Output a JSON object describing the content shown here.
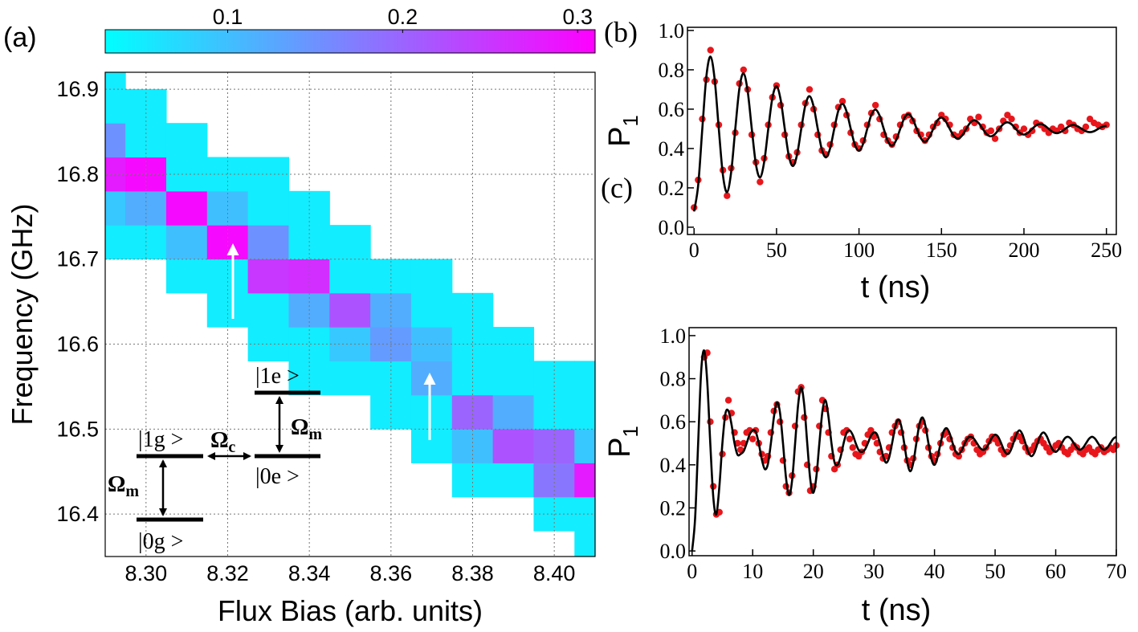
{
  "chart_data": [
    {
      "type": "heatmap",
      "panel_label": "(a)",
      "xlabel": "Flux Bias (arb. units)",
      "ylabel": "Frequency (GHz)",
      "colormap": "cool",
      "grid": true,
      "xlim": [
        8.29,
        8.41
      ],
      "ylim": [
        16.35,
        16.92
      ],
      "zlim": [
        0.03,
        0.31
      ],
      "xticks": [
        {
          "value": 8.3,
          "label": "8.30"
        },
        8.32,
        8.34,
        8.36,
        8.38,
        {
          "value": 8.4,
          "label": "8.40"
        }
      ],
      "yticks": [
        16.4,
        16.5,
        16.6,
        16.7,
        16.8,
        16.9
      ],
      "zticks": [
        0.1,
        0.2,
        0.3
      ],
      "x": [
        8.29,
        8.3,
        8.31,
        8.32,
        8.33,
        8.34,
        8.35,
        8.36,
        8.37,
        8.38,
        8.39,
        8.4,
        8.41
      ],
      "y": [
        16.36,
        16.4,
        16.44,
        16.48,
        16.52,
        16.56,
        16.6,
        16.64,
        16.68,
        16.72,
        16.76,
        16.8,
        16.84,
        16.88,
        16.92
      ],
      "z": [
        [
          null,
          null,
          null,
          null,
          null,
          null,
          null,
          null,
          null,
          null,
          null,
          null,
          0.05
        ],
        [
          null,
          null,
          null,
          null,
          null,
          null,
          null,
          null,
          null,
          null,
          null,
          0.05,
          0.05
        ],
        [
          null,
          null,
          null,
          null,
          null,
          null,
          null,
          null,
          null,
          0.05,
          0.05,
          0.18,
          0.28
        ],
        [
          null,
          null,
          null,
          null,
          null,
          null,
          null,
          null,
          0.05,
          0.1,
          0.22,
          0.2,
          0.09
        ],
        [
          null,
          null,
          null,
          null,
          null,
          null,
          null,
          0.05,
          0.05,
          0.2,
          0.12,
          0.05,
          0.05
        ],
        [
          null,
          null,
          null,
          null,
          null,
          0.05,
          0.05,
          0.05,
          0.12,
          0.05,
          0.05,
          0.05,
          0.05
        ],
        [
          null,
          null,
          null,
          null,
          0.05,
          0.05,
          0.09,
          0.14,
          0.1,
          0.05,
          0.05,
          null,
          null
        ],
        [
          null,
          null,
          null,
          0.05,
          0.05,
          0.12,
          0.22,
          0.12,
          0.05,
          0.05,
          null,
          null,
          null
        ],
        [
          null,
          null,
          0.05,
          0.05,
          0.25,
          0.26,
          0.05,
          0.05,
          0.05,
          null,
          null,
          null,
          null
        ],
        [
          0.05,
          0.05,
          0.1,
          0.3,
          0.15,
          0.05,
          0.05,
          null,
          null,
          null,
          null,
          null,
          null
        ],
        [
          0.09,
          0.12,
          0.3,
          0.1,
          0.05,
          0.05,
          null,
          null,
          null,
          null,
          null,
          null,
          null
        ],
        [
          0.28,
          0.3,
          0.05,
          0.05,
          0.05,
          null,
          null,
          null,
          null,
          null,
          null,
          null,
          null
        ],
        [
          0.15,
          0.05,
          0.05,
          null,
          null,
          null,
          null,
          null,
          null,
          null,
          null,
          null,
          null
        ],
        [
          0.05,
          0.05,
          null,
          null,
          null,
          null,
          null,
          null,
          null,
          null,
          null,
          null,
          null
        ],
        [
          0.05,
          null,
          null,
          null,
          null,
          null,
          null,
          null,
          null,
          null,
          null,
          null,
          null
        ]
      ],
      "annotations": [
        {
          "text": "|1g >"
        },
        {
          "text": "|0g >"
        },
        {
          "text": "|1e >"
        },
        {
          "text": "|0e >"
        },
        {
          "text": "Ω",
          "sub": "m"
        },
        {
          "text": "Ω",
          "sub": "c"
        },
        {
          "text": "Ω",
          "sub": "m"
        }
      ]
    },
    {
      "type": "line",
      "panel_label": "(b)",
      "xlabel": "t (ns)",
      "ylabel": "P",
      "ylabel_subscript": "1",
      "xlim": [
        -4,
        256
      ],
      "ylim": [
        -0.037,
        1.016
      ],
      "xticks": [
        0,
        50,
        100,
        150,
        200,
        250
      ],
      "yticks": [
        {
          "value": 0,
          "label": "0.0"
        },
        {
          "value": 0.2,
          "label": "0.2"
        },
        {
          "value": 0.4,
          "label": "0.4"
        },
        {
          "value": 0.6,
          "label": "0.6"
        },
        {
          "value": 0.8,
          "label": "0.8"
        },
        {
          "value": 1,
          "label": "1.0"
        }
      ],
      "x": [
        0,
        2.5,
        5,
        7.5,
        10,
        12.5,
        15,
        17.5,
        20,
        22.5,
        25,
        27.5,
        30,
        32.5,
        35,
        37.5,
        40,
        42.5,
        45,
        47.5,
        50,
        52.5,
        55,
        57.5,
        60,
        62.5,
        65,
        67.5,
        70,
        72.5,
        75,
        77.5,
        80,
        82.5,
        85,
        87.5,
        90,
        92.5,
        95,
        97.5,
        100,
        102.5,
        105,
        107.5,
        110,
        112.5,
        115,
        117.5,
        120,
        122.5,
        125,
        127.5,
        130,
        132.5,
        135,
        137.5,
        140,
        142.5,
        145,
        147.5,
        150,
        152.5,
        155,
        157.5,
        160,
        162.5,
        165,
        167.5,
        170,
        172.5,
        175,
        177.5,
        180,
        182.5,
        185,
        187.5,
        190,
        192.5,
        195,
        197.5,
        200,
        202.5,
        205,
        207.5,
        210,
        212.5,
        215,
        217.5,
        220,
        222.5,
        225,
        227.5,
        230,
        232.5,
        235,
        237.5,
        240,
        242.5,
        245,
        247.5,
        250
      ],
      "series": [
        {
          "mode": "markers",
          "color": "#e8161b",
          "values": [
            0.1,
            0.24,
            0.55,
            0.75,
            0.9,
            0.74,
            0.52,
            0.29,
            0.16,
            0.3,
            0.48,
            0.73,
            0.8,
            0.7,
            0.47,
            0.33,
            0.23,
            0.35,
            0.52,
            0.66,
            0.72,
            0.62,
            0.47,
            0.36,
            0.33,
            0.38,
            0.52,
            0.63,
            0.7,
            0.6,
            0.47,
            0.39,
            0.37,
            0.42,
            0.52,
            0.61,
            0.64,
            0.57,
            0.48,
            0.42,
            0.4,
            0.44,
            0.52,
            0.58,
            0.62,
            0.55,
            0.47,
            0.44,
            0.42,
            0.46,
            0.52,
            0.56,
            0.57,
            0.54,
            0.49,
            0.47,
            0.44,
            0.47,
            0.51,
            0.53,
            0.57,
            0.55,
            0.52,
            0.47,
            0.46,
            0.48,
            0.5,
            0.55,
            0.53,
            0.56,
            0.51,
            0.48,
            0.49,
            0.45,
            0.5,
            0.54,
            0.57,
            0.55,
            0.51,
            0.48,
            0.5,
            0.47,
            0.49,
            0.53,
            0.52,
            0.5,
            0.48,
            0.5,
            0.49,
            0.51,
            0.49,
            0.53,
            0.52,
            0.5,
            0.49,
            0.51,
            0.55,
            0.53,
            0.52,
            0.51,
            0.52
          ]
        },
        {
          "mode": "line",
          "color": "#000000",
          "values": [
            0.08,
            0.213,
            0.5,
            0.769,
            0.867,
            0.751,
            0.5,
            0.265,
            0.178,
            0.28,
            0.5,
            0.706,
            0.782,
            0.692,
            0.5,
            0.32,
            0.253,
            0.331,
            0.5,
            0.658,
            0.716,
            0.648,
            0.5,
            0.361,
            0.311,
            0.371,
            0.5,
            0.621,
            0.666,
            0.613,
            0.5,
            0.394,
            0.355,
            0.401,
            0.5,
            0.593,
            0.627,
            0.587,
            0.5,
            0.419,
            0.389,
            0.424,
            0.5,
            0.571,
            0.598,
            0.567,
            0.5,
            0.437,
            0.414,
            0.442,
            0.5,
            0.555,
            0.575,
            0.551,
            0.5,
            0.452,
            0.434,
            0.455,
            0.5,
            0.542,
            0.557,
            0.539,
            0.5,
            0.464,
            0.45,
            0.466,
            0.5,
            0.532,
            0.544,
            0.53,
            0.5,
            0.472,
            0.462,
            0.474,
            0.5,
            0.524,
            0.533,
            0.523,
            0.5,
            0.479,
            0.471,
            0.48,
            0.5,
            0.518,
            0.525,
            0.517,
            0.5,
            0.484,
            0.478,
            0.485,
            0.5,
            0.514,
            0.52,
            0.513,
            0.5,
            0.488,
            0.483,
            0.488,
            0.5,
            0.511,
            0.515
          ]
        }
      ]
    },
    {
      "type": "line",
      "panel_label": "(c)",
      "xlabel": "t (ns)",
      "ylabel": "P",
      "ylabel_subscript": "1",
      "xlim": [
        -0.5,
        70
      ],
      "ylim": [
        -0.022,
        1.037
      ],
      "xticks": [
        0,
        10,
        20,
        30,
        40,
        50,
        60,
        70
      ],
      "yticks": [
        {
          "value": 0,
          "label": "0.0"
        },
        {
          "value": 0.2,
          "label": "0.2"
        },
        {
          "value": 0.4,
          "label": "0.4"
        },
        {
          "value": 0.6,
          "label": "0.6"
        },
        {
          "value": 0.8,
          "label": "0.8"
        },
        {
          "value": 1,
          "label": "1.0"
        }
      ],
      "x": [
        0,
        0.5,
        1,
        1.5,
        2,
        2.5,
        3,
        3.5,
        4,
        4.5,
        5,
        5.5,
        6,
        6.5,
        7,
        7.5,
        8,
        8.5,
        9,
        9.5,
        10,
        10.5,
        11,
        11.5,
        12,
        12.5,
        13,
        13.5,
        14,
        14.5,
        15,
        15.5,
        16,
        16.5,
        17,
        17.5,
        18,
        18.5,
        19,
        19.5,
        20,
        20.5,
        21,
        21.5,
        22,
        22.5,
        23,
        23.5,
        24,
        24.5,
        25,
        25.5,
        26,
        26.5,
        27,
        27.5,
        28,
        28.5,
        29,
        29.5,
        30,
        30.5,
        31,
        31.5,
        32,
        32.5,
        33,
        33.5,
        34,
        34.5,
        35,
        35.5,
        36,
        36.5,
        37,
        37.5,
        38,
        38.5,
        39,
        39.5,
        40,
        40.5,
        41,
        41.5,
        42,
        42.5,
        43,
        43.5,
        44,
        44.5,
        45,
        45.5,
        46,
        46.5,
        47,
        47.5,
        48,
        48.5,
        49,
        49.5,
        50,
        50.5,
        51,
        51.5,
        52,
        52.5,
        53,
        53.5,
        54,
        54.5,
        55,
        55.5,
        56,
        56.5,
        57,
        57.5,
        58,
        58.5,
        59,
        59.5,
        60,
        60.5,
        61,
        61.5,
        62,
        62.5,
        63,
        63.5,
        64,
        64.5,
        65,
        65.5,
        66,
        66.5,
        67,
        67.5,
        68,
        68.5,
        69,
        69.5,
        70
      ],
      "series": [
        {
          "mode": "markers",
          "color": "#e8161b",
          "values": [
            null,
            null,
            null,
            null,
            0.9,
            0.92,
            0.6,
            0.3,
            0.17,
            0.18,
            0.45,
            0.62,
            0.7,
            0.64,
            0.55,
            0.5,
            0.47,
            0.5,
            0.55,
            0.56,
            0.52,
            0.56,
            0.5,
            0.45,
            0.42,
            0.44,
            0.55,
            0.65,
            0.68,
            0.6,
            0.42,
            0.3,
            0.27,
            0.35,
            0.58,
            0.74,
            0.76,
            0.62,
            0.4,
            0.28,
            0.3,
            0.38,
            0.58,
            0.7,
            0.66,
            0.55,
            0.44,
            0.38,
            0.4,
            0.47,
            0.55,
            0.56,
            0.52,
            0.48,
            0.45,
            0.44,
            0.46,
            0.5,
            0.54,
            0.56,
            0.53,
            0.5,
            0.46,
            0.43,
            0.44,
            0.48,
            0.55,
            0.58,
            0.6,
            0.55,
            0.48,
            0.42,
            0.4,
            0.43,
            0.52,
            0.58,
            0.6,
            0.56,
            0.48,
            0.44,
            0.42,
            0.45,
            0.5,
            0.54,
            0.55,
            0.52,
            0.48,
            0.45,
            0.44,
            0.47,
            0.5,
            0.52,
            0.53,
            0.5,
            0.47,
            0.45,
            0.46,
            0.48,
            0.51,
            0.53,
            0.52,
            0.5,
            0.47,
            0.45,
            0.46,
            0.49,
            0.52,
            0.54,
            0.53,
            0.51,
            0.48,
            0.46,
            0.47,
            0.49,
            0.51,
            0.52,
            0.5,
            0.48,
            0.46,
            0.47,
            0.49,
            0.5,
            0.48,
            0.46,
            0.45,
            0.47,
            0.49,
            0.48,
            0.46,
            0.45,
            0.47,
            0.48,
            0.46,
            0.45,
            0.47,
            0.48,
            0.46,
            0.47,
            0.48,
            0.47,
            0.49
          ]
        },
        {
          "mode": "line",
          "color": "#000000",
          "values": [
            0,
            0.153,
            0.5,
            0.835,
            0.93,
            0.786,
            0.5,
            0.249,
            0.17,
            0.299,
            0.5,
            0.638,
            0.65,
            0.588,
            0.5,
            0.447,
            0.45,
            0.463,
            0.5,
            0.541,
            0.56,
            0.553,
            0.5,
            0.426,
            0.38,
            0.403,
            0.5,
            0.622,
            0.69,
            0.643,
            0.5,
            0.339,
            0.26,
            0.327,
            0.5,
            0.68,
            0.76,
            0.679,
            0.5,
            0.332,
            0.27,
            0.343,
            0.5,
            0.647,
            0.7,
            0.624,
            0.5,
            0.412,
            0.4,
            0.436,
            0.5,
            0.549,
            0.56,
            0.539,
            0.5,
            0.468,
            0.46,
            0.47,
            0.5,
            0.534,
            0.55,
            0.542,
            0.5,
            0.443,
            0.41,
            0.433,
            0.5,
            0.574,
            0.61,
            0.581,
            0.5,
            0.412,
            0.37,
            0.41,
            0.5,
            0.587,
            0.62,
            0.581,
            0.5,
            0.426,
            0.4,
            0.435,
            0.5,
            0.555,
            0.57,
            0.546,
            0.5,
            0.461,
            0.45,
            0.468,
            0.5,
            0.525,
            0.53,
            0.521,
            0.5,
            0.479,
            0.47,
            0.477,
            0.5,
            0.527,
            0.54,
            0.53,
            0.5,
            0.466,
            0.45,
            0.463,
            0.5,
            0.541,
            0.56,
            0.542,
            0.5,
            0.458,
            0.44,
            0.458,
            0.5,
            0.537,
            0.55,
            0.534,
            0.5,
            0.47,
            0.46,
            0.473,
            0.5,
            0.523,
            0.53,
            0.521,
            0.5,
            0.479,
            0.47,
            0.479,
            0.5,
            0.521,
            0.53,
            0.521,
            0.5,
            0.479,
            0.47,
            0.479,
            0.5,
            0.521,
            0.53
          ]
        }
      ]
    }
  ]
}
